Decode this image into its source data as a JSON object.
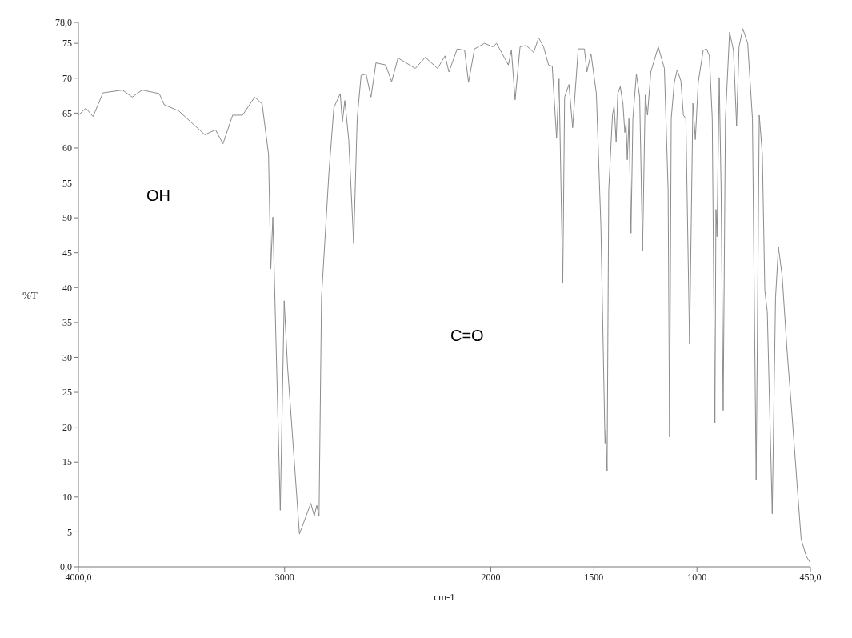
{
  "chart_data": {
    "type": "line",
    "xlabel": "cm-1",
    "ylabel": "%T",
    "annotations": [
      "OH",
      "C=O"
    ],
    "xlim": [
      4000,
      450
    ],
    "xticks": [
      {
        "value": 4000,
        "label": "4000,0"
      },
      3000,
      2000,
      1500,
      1000,
      {
        "value": 450,
        "label": "450,0"
      }
    ],
    "ylim": [
      0,
      78
    ],
    "yticks": [
      {
        "value": 0,
        "label": "0,0"
      },
      5,
      10,
      15,
      20,
      25,
      30,
      35,
      40,
      45,
      50,
      55,
      60,
      65,
      70,
      75,
      {
        "value": 78,
        "label": "78,0"
      }
    ],
    "grid": false,
    "legend": false,
    "marker": "none",
    "line_style": "solid",
    "x": [
      4000,
      3964,
      3929,
      3881,
      3786,
      3739,
      3691,
      3608,
      3584,
      3513,
      3454,
      3387,
      3335,
      3299,
      3252,
      3204,
      3145,
      3109,
      3078,
      3067,
      3057,
      3021,
      3002,
      2986,
      2928,
      2873,
      2856,
      2844,
      2833,
      2821,
      2785,
      2761,
      2730,
      2720,
      2708,
      2689,
      2665,
      2648,
      2629,
      2605,
      2581,
      2557,
      2510,
      2481,
      2450,
      2366,
      2318,
      2258,
      2222,
      2203,
      2163,
      2127,
      2108,
      2079,
      2031,
      1990,
      1972,
      1948,
      1915,
      1900,
      1882,
      1858,
      1828,
      1792,
      1768,
      1744,
      1720,
      1702,
      1681,
      1669,
      1651,
      1642,
      1621,
      1603,
      1576,
      1546,
      1534,
      1514,
      1488,
      1466,
      1446,
      1442,
      1436,
      1428,
      1410,
      1402,
      1392,
      1384,
      1372,
      1359,
      1350,
      1344,
      1338,
      1330,
      1320,
      1311,
      1294,
      1278,
      1264,
      1251,
      1240,
      1224,
      1188,
      1158,
      1140,
      1133,
      1125,
      1110,
      1096,
      1078,
      1066,
      1054,
      1036,
      1020,
      1008,
      994,
      970,
      954,
      940,
      926,
      913,
      908,
      903,
      892,
      883,
      873,
      862,
      842,
      823,
      808,
      796,
      778,
      754,
      731,
      713,
      698,
      683,
      671,
      659,
      635,
      619,
      605,
      587,
      563,
      539,
      515,
      495,
      470,
      455,
      450
    ],
    "series": [
      {
        "color": "#8c8c8c",
        "values": [
          64.7,
          65.7,
          64.5,
          67.9,
          68.3,
          67.3,
          68.3,
          67.8,
          66.2,
          65.3,
          63.7,
          61.9,
          62.6,
          60.6,
          64.7,
          64.7,
          67.3,
          66.3,
          59.1,
          42.7,
          50.1,
          8.1,
          38.1,
          28.8,
          4.7,
          9.1,
          7.3,
          8.8,
          7.3,
          38.6,
          56.5,
          65.8,
          67.8,
          63.7,
          66.8,
          61.2,
          46.3,
          64.2,
          70.4,
          70.6,
          67.3,
          72.2,
          71.9,
          69.5,
          72.9,
          71.4,
          73.0,
          71.4,
          73.2,
          70.9,
          74.2,
          74.0,
          69.4,
          74.2,
          75.0,
          74.5,
          75.0,
          73.7,
          71.9,
          74.0,
          66.9,
          74.5,
          74.7,
          73.7,
          75.8,
          74.5,
          71.9,
          71.7,
          61.4,
          69.9,
          40.6,
          67.3,
          69.1,
          62.9,
          74.2,
          74.2,
          70.9,
          73.5,
          67.8,
          48.8,
          17.6,
          19.6,
          13.7,
          54.0,
          64.7,
          66.0,
          60.9,
          67.8,
          68.8,
          66.3,
          62.2,
          63.5,
          58.3,
          64.2,
          47.8,
          64.2,
          70.6,
          67.3,
          45.2,
          67.6,
          64.7,
          70.9,
          74.5,
          71.4,
          54.0,
          18.6,
          64.2,
          69.4,
          71.2,
          69.6,
          64.7,
          64.2,
          31.9,
          66.4,
          61.2,
          69.4,
          74.0,
          74.2,
          73.2,
          64.2,
          20.6,
          51.2,
          47.3,
          70.1,
          54.0,
          22.4,
          64.2,
          76.6,
          74.0,
          63.2,
          74.5,
          77.1,
          75.0,
          64.2,
          12.4,
          64.7,
          59.1,
          39.6,
          36.5,
          7.6,
          38.6,
          45.8,
          41.7,
          30.9,
          21.7,
          12,
          4,
          1.5,
          0.8,
          0.5
        ]
      }
    ]
  }
}
